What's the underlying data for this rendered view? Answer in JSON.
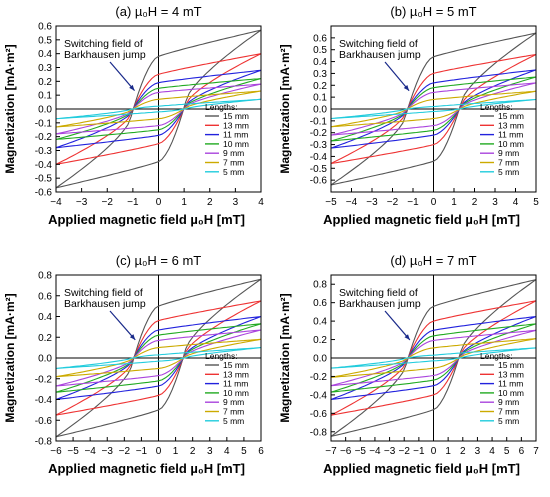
{
  "legend_title": "Lengths:",
  "annotation": [
    "Switching field of",
    "Barkhausen jump"
  ],
  "xlabel": "Applied magnetic field µ₀H [mT]",
  "ylabel": "Magnetization [mA·m²]",
  "series_colors": {
    "15 mm": "#555555",
    "13 mm": "#ee3333",
    "11 mm": "#2222dd",
    "10 mm": "#22aa22",
    "9 mm": "#aa44dd",
    "7 mm": "#ccaa00",
    "5 mm": "#22ccdd"
  },
  "chart_data": [
    {
      "type": "line",
      "title": "(a) µ₀H = 4 mT",
      "xlim": [
        -4,
        4
      ],
      "ylim": [
        -0.6,
        0.6
      ],
      "xticks": [
        -4,
        -3,
        -2,
        -1,
        0,
        1,
        2,
        3,
        4
      ],
      "yticks": [
        -0.6,
        -0.5,
        -0.4,
        -0.3,
        -0.2,
        -0.1,
        0.0,
        0.1,
        0.2,
        0.3,
        0.4,
        0.5,
        0.6
      ],
      "ytick_labels": [
        "-0.6",
        "-0.5",
        "-0.4",
        "-0.3",
        "-0.2",
        "-0.1",
        "0.0",
        "0.1",
        "0.2",
        "0.3",
        "0.4",
        "0.5",
        "0.6"
      ],
      "series": [
        {
          "name": "15 mm",
          "sat": 0.57,
          "rem": 0.38,
          "hc": 1.1,
          "jump": 0.25
        },
        {
          "name": "13 mm",
          "sat": 0.4,
          "rem": 0.25,
          "hc": 1.1,
          "jump": 0.15
        },
        {
          "name": "11 mm",
          "sat": 0.28,
          "rem": 0.19,
          "hc": 1.1,
          "jump": 0.11
        },
        {
          "name": "10 mm",
          "sat": 0.22,
          "rem": 0.15,
          "hc": 1.1,
          "jump": 0.09
        },
        {
          "name": "9 mm",
          "sat": 0.18,
          "rem": 0.12,
          "hc": 1.1,
          "jump": 0.07
        },
        {
          "name": "7 mm",
          "sat": 0.13,
          "rem": 0.07,
          "hc": 1.1,
          "jump": 0.04
        },
        {
          "name": "5 mm",
          "sat": 0.07,
          "rem": 0.02,
          "hc": 1.1,
          "jump": 0.01
        }
      ]
    },
    {
      "type": "line",
      "title": "(b) µ₀H = 5 mT",
      "xlim": [
        -5,
        5
      ],
      "ylim": [
        -0.7,
        0.7
      ],
      "xticks": [
        -5,
        -4,
        -3,
        -2,
        -1,
        0,
        1,
        2,
        3,
        4,
        5
      ],
      "yticks": [
        -0.6,
        -0.5,
        -0.4,
        -0.3,
        -0.2,
        -0.1,
        0.0,
        0.1,
        0.2,
        0.3,
        0.4,
        0.5,
        0.6
      ],
      "ytick_labels": [
        "-0.6",
        "-0.5",
        "-0.4",
        "-0.3",
        "-0.2",
        "-0.1",
        "0.0",
        "0.1",
        "0.2",
        "0.3",
        "0.4",
        "0.5",
        "0.6"
      ],
      "series": [
        {
          "name": "15 mm",
          "sat": 0.64,
          "rem": 0.44,
          "hc": 1.4,
          "jump": 0.27
        },
        {
          "name": "13 mm",
          "sat": 0.46,
          "rem": 0.3,
          "hc": 1.4,
          "jump": 0.17
        },
        {
          "name": "11 mm",
          "sat": 0.33,
          "rem": 0.22,
          "hc": 1.4,
          "jump": 0.12
        },
        {
          "name": "10 mm",
          "sat": 0.27,
          "rem": 0.18,
          "hc": 1.4,
          "jump": 0.1
        },
        {
          "name": "9 mm",
          "sat": 0.22,
          "rem": 0.14,
          "hc": 1.4,
          "jump": 0.08
        },
        {
          "name": "7 mm",
          "sat": 0.15,
          "rem": 0.08,
          "hc": 1.4,
          "jump": 0.04
        },
        {
          "name": "5 mm",
          "sat": 0.08,
          "rem": 0.02,
          "hc": 1.4,
          "jump": 0.01
        }
      ]
    },
    {
      "type": "line",
      "title": "(c) µ₀H = 6 mT",
      "xlim": [
        -6,
        6
      ],
      "ylim": [
        -0.8,
        0.8
      ],
      "xticks": [
        -6,
        -5,
        -4,
        -3,
        -2,
        -1,
        0,
        1,
        2,
        3,
        4,
        5,
        6
      ],
      "yticks": [
        -0.8,
        -0.6,
        -0.4,
        -0.2,
        0.0,
        0.2,
        0.4,
        0.6,
        0.8
      ],
      "ytick_labels": [
        "-0.8",
        "-0.6",
        "-0.4",
        "-0.2",
        "0.0",
        "0.2",
        "0.4",
        "0.6",
        "0.8"
      ],
      "series": [
        {
          "name": "15 mm",
          "sat": 0.76,
          "rem": 0.5,
          "hc": 1.6,
          "jump": 0.3
        },
        {
          "name": "13 mm",
          "sat": 0.55,
          "rem": 0.36,
          "hc": 1.6,
          "jump": 0.2
        },
        {
          "name": "11 mm",
          "sat": 0.4,
          "rem": 0.27,
          "hc": 1.6,
          "jump": 0.14
        },
        {
          "name": "10 mm",
          "sat": 0.33,
          "rem": 0.22,
          "hc": 1.6,
          "jump": 0.12
        },
        {
          "name": "9 mm",
          "sat": 0.27,
          "rem": 0.17,
          "hc": 1.6,
          "jump": 0.09
        },
        {
          "name": "7 mm",
          "sat": 0.18,
          "rem": 0.1,
          "hc": 1.6,
          "jump": 0.05
        },
        {
          "name": "5 mm",
          "sat": 0.1,
          "rem": 0.03,
          "hc": 1.6,
          "jump": 0.01
        }
      ]
    },
    {
      "type": "line",
      "title": "(d) µ₀H = 7 mT",
      "xlim": [
        -7,
        7
      ],
      "ylim": [
        -0.9,
        0.9
      ],
      "xticks": [
        -7,
        -6,
        -5,
        -4,
        -3,
        -2,
        -1,
        0,
        1,
        2,
        3,
        4,
        5,
        6,
        7
      ],
      "yticks": [
        -0.8,
        -0.6,
        -0.4,
        -0.2,
        0.0,
        0.2,
        0.4,
        0.6,
        0.8
      ],
      "ytick_labels": [
        "-0.8",
        "-0.6",
        "-0.4",
        "-0.2",
        "0.0",
        "0.2",
        "0.4",
        "0.6",
        "0.8"
      ],
      "series": [
        {
          "name": "15 mm",
          "sat": 0.85,
          "rem": 0.56,
          "hc": 1.9,
          "jump": 0.3
        },
        {
          "name": "13 mm",
          "sat": 0.62,
          "rem": 0.4,
          "hc": 1.9,
          "jump": 0.2
        },
        {
          "name": "11 mm",
          "sat": 0.45,
          "rem": 0.3,
          "hc": 1.9,
          "jump": 0.14
        },
        {
          "name": "10 mm",
          "sat": 0.37,
          "rem": 0.24,
          "hc": 1.9,
          "jump": 0.12
        },
        {
          "name": "9 mm",
          "sat": 0.3,
          "rem": 0.19,
          "hc": 1.9,
          "jump": 0.09
        },
        {
          "name": "7 mm",
          "sat": 0.21,
          "rem": 0.11,
          "hc": 1.9,
          "jump": 0.05
        },
        {
          "name": "5 mm",
          "sat": 0.11,
          "rem": 0.03,
          "hc": 1.9,
          "jump": 0.01
        }
      ]
    }
  ]
}
